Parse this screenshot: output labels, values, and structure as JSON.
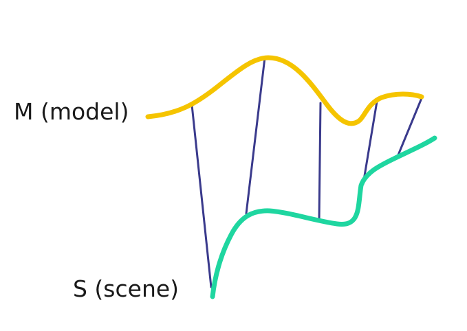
{
  "labels": {
    "model": "M (model)",
    "scene": "S (scene)"
  },
  "colors": {
    "model_curve": "#f5c400",
    "scene_curve": "#1fd6a0",
    "correspondence_line": "#3a3a8c",
    "text": "#1a1a1a",
    "background": "#ffffff"
  }
}
